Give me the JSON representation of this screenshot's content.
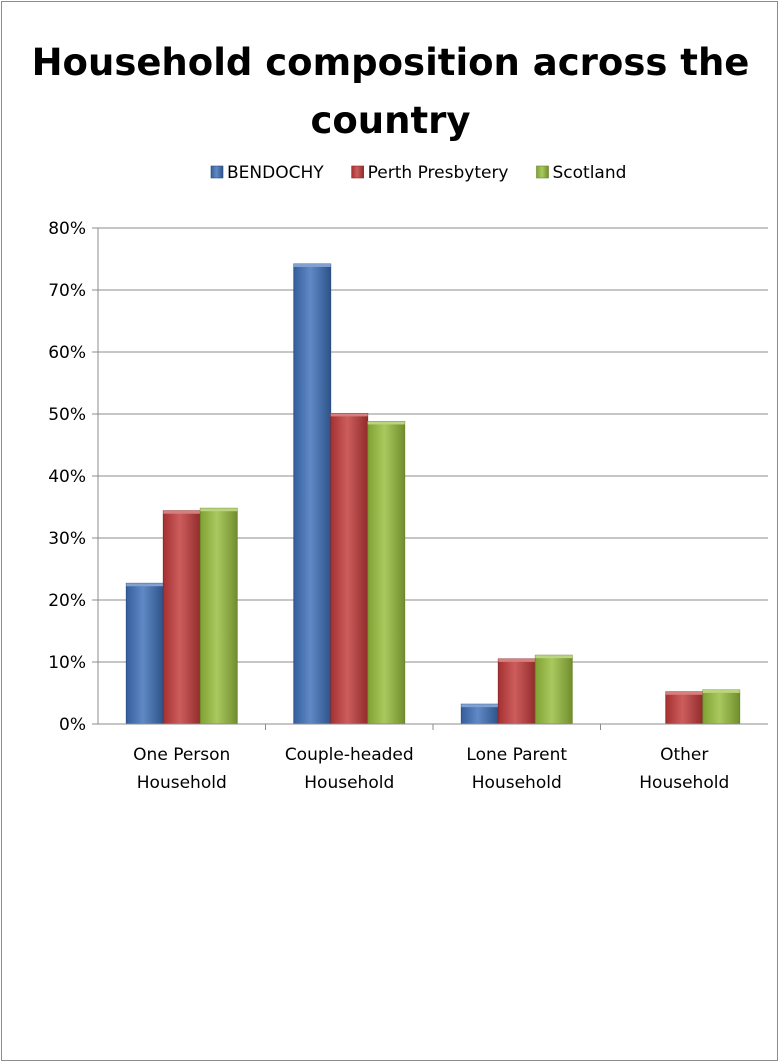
{
  "chart_data": {
    "type": "bar",
    "title": "Household composition across the country",
    "categories": [
      [
        "One Person",
        "Household"
      ],
      [
        "Couple-headed",
        "Household"
      ],
      [
        "Lone Parent",
        "Household"
      ],
      [
        "Other",
        "Household"
      ]
    ],
    "series": [
      {
        "name": "BENDOCHY",
        "color": "#3d6fb8",
        "values": [
          22.7,
          74.2,
          3.2,
          0
        ]
      },
      {
        "name": "Perth Presbytery",
        "color": "#c23a3a",
        "values": [
          34.4,
          50.1,
          10.5,
          5.2
        ]
      },
      {
        "name": "Scotland",
        "color": "#96bd3c",
        "values": [
          34.8,
          48.8,
          11.1,
          5.5
        ]
      }
    ],
    "y_ticks": [
      "0%",
      "10%",
      "20%",
      "30%",
      "40%",
      "50%",
      "60%",
      "70%",
      "80%"
    ],
    "ylim": [
      0,
      80
    ],
    "legend_position": "top",
    "grid": true
  }
}
